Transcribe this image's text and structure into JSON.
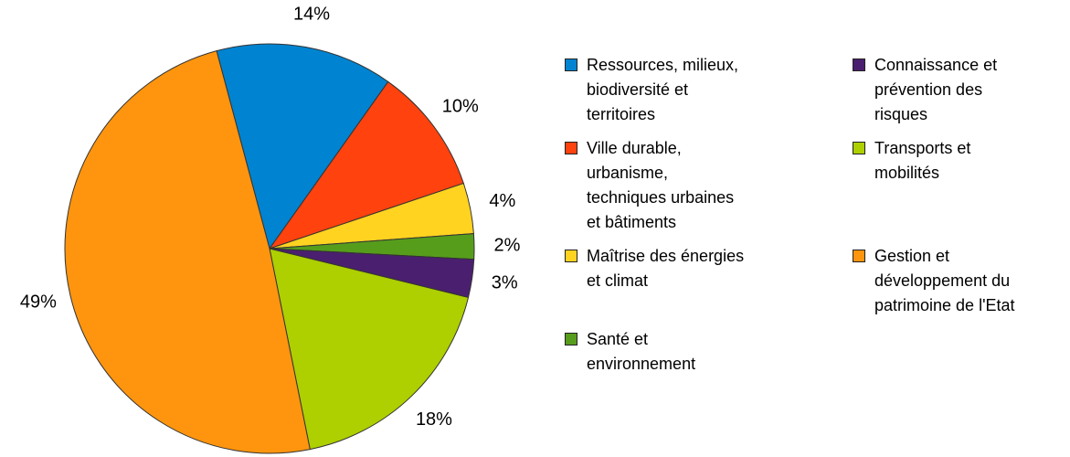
{
  "chart_data": {
    "type": "pie",
    "categories": [
      "Ressources, milieux,\nbiodiversité et\nterritoires",
      "Ville durable,\nurbanisme,\ntechniques urbaines\net bâtiments",
      "Maîtrise des énergies\net climat",
      "Santé et\nenvironnement",
      "Connaissance et\nprévention des\nrisques",
      "Transports et\nmobilités",
      "Gestion et\ndéveloppement du\npatrimoine de l'Etat"
    ],
    "values": [
      14,
      10,
      4,
      2,
      3,
      18,
      49
    ],
    "value_labels": [
      "14%",
      "10%",
      "4%",
      "2%",
      "3%",
      "18%",
      "49%"
    ],
    "colors": [
      "#0084d1",
      "#ff420e",
      "#ffd320",
      "#579d1c",
      "#4b1f6f",
      "#aecf00",
      "#ff950e"
    ],
    "legend": "right"
  }
}
